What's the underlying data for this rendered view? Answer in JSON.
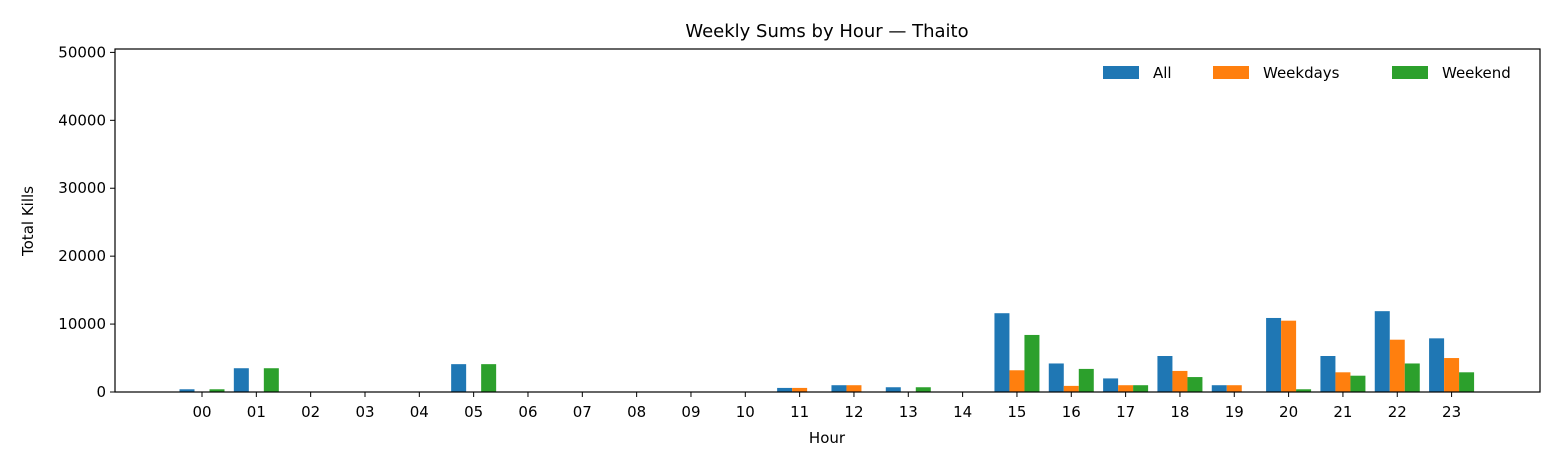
{
  "chart_data": {
    "type": "bar",
    "title": "Weekly Sums by Hour — Thaito",
    "xlabel": "Hour",
    "ylabel": "Total Kills",
    "categories": [
      "00",
      "01",
      "02",
      "03",
      "04",
      "05",
      "06",
      "07",
      "08",
      "09",
      "10",
      "11",
      "12",
      "13",
      "14",
      "15",
      "16",
      "17",
      "18",
      "19",
      "20",
      "21",
      "22",
      "23"
    ],
    "series": [
      {
        "name": "All",
        "color": "#1f77b4",
        "values": [
          400,
          3500,
          0,
          0,
          0,
          4100,
          0,
          0,
          0,
          0,
          0,
          600,
          1000,
          700,
          0,
          11600,
          4200,
          2000,
          5300,
          1000,
          10900,
          5300,
          11900,
          7900
        ]
      },
      {
        "name": "Weekdays",
        "color": "#ff7f0e",
        "values": [
          0,
          0,
          0,
          0,
          0,
          0,
          0,
          0,
          0,
          0,
          0,
          600,
          1000,
          0,
          0,
          3200,
          900,
          1000,
          3100,
          1000,
          10500,
          2900,
          7700,
          5000
        ]
      },
      {
        "name": "Weekend",
        "color": "#2ca02c",
        "values": [
          400,
          3500,
          0,
          0,
          0,
          4100,
          0,
          0,
          0,
          0,
          0,
          0,
          0,
          700,
          0,
          8400,
          3400,
          1000,
          2200,
          0,
          400,
          2400,
          4200,
          2900
        ]
      }
    ],
    "ylim": [
      0,
      50500
    ],
    "yticks": [
      0,
      10000,
      20000,
      30000,
      40000,
      50000
    ],
    "grid": false,
    "legend_position": "top-right"
  }
}
